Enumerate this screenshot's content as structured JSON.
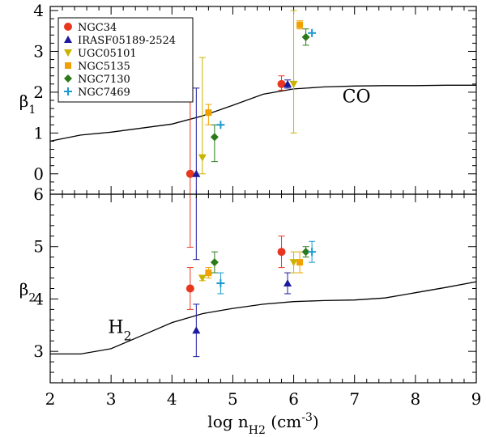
{
  "chart_data": {
    "type": "scatter",
    "xlabel_main": "log n",
    "xlabel_sub": "H2",
    "xlabel_unit_pre": " (cm",
    "xlabel_unit_sup": "-3",
    "xlabel_unit_post": ")",
    "xlim": [
      2,
      9
    ],
    "xticks": [
      2,
      3,
      4,
      5,
      6,
      7,
      8,
      9
    ],
    "series_names": [
      "NGC34",
      "IRASF05189-2524",
      "UGC05101",
      "NGC5135",
      "NGC7130",
      "NGC7469"
    ],
    "series_colors": [
      "#e8371e",
      "#1a1aa0",
      "#c8b400",
      "#f0a000",
      "#2a7a1a",
      "#1a9ad0"
    ],
    "series_markers": [
      "circle",
      "triangle-up",
      "triangle-down",
      "square",
      "diamond",
      "plus"
    ],
    "panels": [
      {
        "name": "top",
        "ylabel": "β",
        "ylabel_sub": "1",
        "ylim": [
          -0.5,
          4.1
        ],
        "yticks": [
          0,
          1,
          2,
          3,
          4
        ],
        "label": "CO",
        "curve": [
          [
            2.0,
            0.8
          ],
          [
            2.5,
            0.95
          ],
          [
            3.0,
            1.02
          ],
          [
            3.5,
            1.12
          ],
          [
            4.0,
            1.22
          ],
          [
            4.5,
            1.42
          ],
          [
            5.0,
            1.68
          ],
          [
            5.5,
            1.95
          ],
          [
            6.0,
            2.08
          ],
          [
            6.5,
            2.13
          ],
          [
            7.0,
            2.15
          ],
          [
            7.5,
            2.16
          ],
          [
            8.0,
            2.16
          ],
          [
            8.5,
            2.17
          ],
          [
            9.0,
            2.17
          ]
        ],
        "points": [
          {
            "series": 0,
            "x": [
              4.3,
              5.8
            ],
            "y": [
              0.0,
              2.2
            ],
            "yerr_lo": [
              1.8,
              0.15
            ],
            "yerr_hi": [
              1.8,
              0.2
            ]
          },
          {
            "series": 1,
            "x": [
              4.4,
              5.9
            ],
            "y": [
              0.0,
              2.2
            ],
            "yerr_lo": [
              2.1,
              0.1
            ],
            "yerr_hi": [
              2.1,
              0.1
            ]
          },
          {
            "series": 2,
            "x": [
              4.5,
              6.0
            ],
            "y": [
              0.4,
              2.2
            ],
            "yerr_lo": [
              0.4,
              1.2
            ],
            "yerr_hi": [
              2.45,
              1.8
            ]
          },
          {
            "series": 3,
            "x": [
              4.6,
              6.1
            ],
            "y": [
              1.5,
              3.65
            ],
            "yerr_lo": [
              0.3,
              0.1
            ],
            "yerr_hi": [
              0.2,
              0.1
            ]
          },
          {
            "series": 4,
            "x": [
              4.7,
              6.2
            ],
            "y": [
              0.9,
              3.35
            ],
            "yerr_lo": [
              0.6,
              0.2
            ],
            "yerr_hi": [
              0.3,
              0.2
            ]
          },
          {
            "series": 5,
            "x": [
              4.8,
              6.3
            ],
            "y": [
              1.2,
              3.45
            ],
            "yerr_lo": [
              0,
              0
            ],
            "yerr_hi": [
              0,
              0
            ]
          }
        ]
      },
      {
        "name": "bottom",
        "ylabel": "β",
        "ylabel_sub": "2",
        "ylim": [
          2.4,
          6.0
        ],
        "yticks": [
          3,
          4,
          5,
          6
        ],
        "label": "H",
        "label_sub": "2",
        "curve": [
          [
            2.0,
            2.95
          ],
          [
            2.5,
            2.95
          ],
          [
            3.0,
            3.05
          ],
          [
            3.5,
            3.3
          ],
          [
            4.0,
            3.55
          ],
          [
            4.5,
            3.72
          ],
          [
            5.0,
            3.82
          ],
          [
            5.5,
            3.9
          ],
          [
            6.0,
            3.95
          ],
          [
            6.5,
            3.97
          ],
          [
            7.0,
            3.98
          ],
          [
            7.5,
            4.02
          ],
          [
            8.0,
            4.12
          ],
          [
            8.5,
            4.22
          ],
          [
            9.0,
            4.33
          ]
        ],
        "points": [
          {
            "series": 0,
            "x": [
              4.3,
              5.8
            ],
            "y": [
              4.2,
              4.9
            ],
            "yerr_lo": [
              0.4,
              0.3
            ],
            "yerr_hi": [
              0.4,
              0.3
            ]
          },
          {
            "series": 1,
            "x": [
              4.4,
              5.9
            ],
            "y": [
              3.4,
              4.3
            ],
            "yerr_lo": [
              0.5,
              0.2
            ],
            "yerr_hi": [
              0.5,
              0.2
            ]
          },
          {
            "series": 2,
            "x": [
              4.5,
              6.0
            ],
            "y": [
              4.4,
              4.7
            ],
            "yerr_lo": [
              0.05,
              0.2
            ],
            "yerr_hi": [
              0.05,
              0.2
            ]
          },
          {
            "series": 3,
            "x": [
              4.6,
              6.1
            ],
            "y": [
              4.5,
              4.7
            ],
            "yerr_lo": [
              0.1,
              0.2
            ],
            "yerr_hi": [
              0.1,
              0.2
            ]
          },
          {
            "series": 4,
            "x": [
              4.7,
              6.2
            ],
            "y": [
              4.7,
              4.9
            ],
            "yerr_lo": [
              0.2,
              0.1
            ],
            "yerr_hi": [
              0.2,
              0.1
            ]
          },
          {
            "series": 5,
            "x": [
              4.8,
              6.3
            ],
            "y": [
              4.3,
              4.9
            ],
            "yerr_lo": [
              0.2,
              0.2
            ],
            "yerr_hi": [
              0.2,
              0.2
            ]
          }
        ]
      }
    ]
  }
}
